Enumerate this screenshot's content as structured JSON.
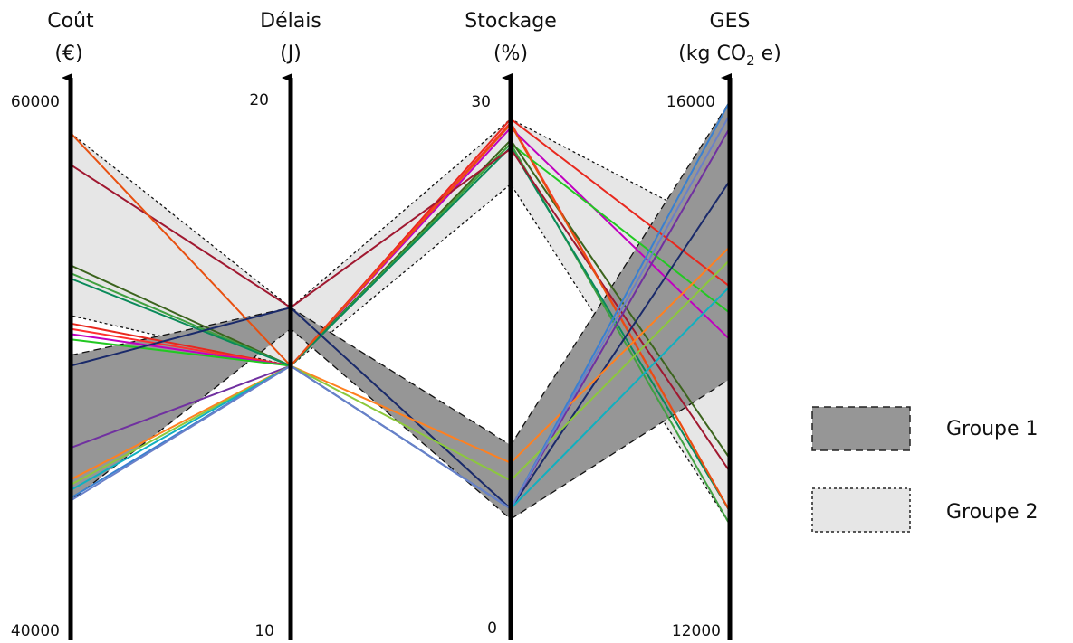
{
  "chart_data": {
    "type": "parallel_coordinates",
    "axes": [
      {
        "name": "Coût",
        "unit": "(€)",
        "min": 40000,
        "max": 60000,
        "min_label": "40000",
        "max_label": "60000"
      },
      {
        "name": "Délais",
        "unit": "(J)",
        "min": 10,
        "max": 20,
        "min_label": "10",
        "max_label": "20"
      },
      {
        "name": "Stockage",
        "unit": "(%)",
        "min": 0,
        "max": 30,
        "min_label": "0",
        "max_label": "30"
      },
      {
        "name": "GES",
        "unit_parts": [
          "(kg CO",
          "2",
          " e)"
        ],
        "min": 12000,
        "max": 16000,
        "min_label": "12000",
        "max_label": "16000"
      }
    ],
    "groups": [
      {
        "name": "Groupe 1",
        "fill": "#969696",
        "dash": "8,5",
        "bounds": {
          "lower": [
            44900,
            15.7,
            6.3,
            13900
          ],
          "upper": [
            50400,
            16.1,
            10.5,
            16000
          ]
        }
      },
      {
        "name": "Groupe 2",
        "fill": "#e6e6e6",
        "dash": "3,3",
        "bounds": {
          "lower": [
            51900,
            15.0,
            25.3,
            12800
          ],
          "upper": [
            58800,
            16.1,
            29.0,
            15000
          ]
        }
      }
    ],
    "series": [
      {
        "color": "#e8281e",
        "values": [
          51600,
          15.0,
          29.0,
          14600
        ]
      },
      {
        "color": "#ff3030",
        "values": [
          51400,
          15.0,
          28.8,
          12900
        ]
      },
      {
        "color": "#c000c0",
        "values": [
          51200,
          15.0,
          28.5,
          14200
        ]
      },
      {
        "color": "#22c822",
        "values": [
          51000,
          15.0,
          27.6,
          14400
        ]
      },
      {
        "color": "#3c641e",
        "values": [
          53800,
          15.0,
          27.8,
          13300
        ]
      },
      {
        "color": "#40a040",
        "values": [
          53500,
          15.0,
          27.6,
          12800
        ]
      },
      {
        "color": "#0a8a5a",
        "values": [
          53300,
          15.0,
          27.4,
          12900
        ]
      },
      {
        "color": "#a01830",
        "values": [
          57600,
          16.1,
          27.3,
          13200
        ]
      },
      {
        "color": "#e85010",
        "values": [
          58800,
          15.0,
          28.7,
          12900
        ]
      },
      {
        "color": "#1a2a6a",
        "values": [
          50000,
          16.1,
          6.9,
          15400
        ]
      },
      {
        "color": "#7030a0",
        "values": [
          46900,
          15.0,
          6.9,
          15800
        ]
      },
      {
        "color": "#ff8020",
        "values": [
          45700,
          15.0,
          9.5,
          14900
        ]
      },
      {
        "color": "#8cc83c",
        "values": [
          45500,
          15.0,
          8.5,
          14800
        ]
      },
      {
        "color": "#10b0c0",
        "values": [
          45300,
          15.0,
          6.9,
          14600
        ]
      },
      {
        "color": "#3a80d0",
        "values": [
          45000,
          15.0,
          6.9,
          16000
        ]
      },
      {
        "color": "#6a80c8",
        "values": [
          44900,
          15.0,
          6.9,
          15900
        ]
      }
    ],
    "legend": {
      "placement": "right"
    }
  }
}
